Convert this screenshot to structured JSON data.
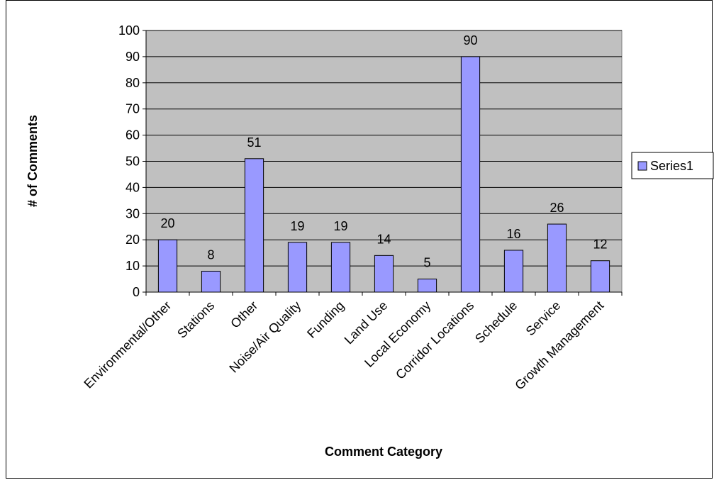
{
  "chart_data": {
    "type": "bar",
    "categories": [
      "Environmental/Other",
      "Stations",
      "Other",
      "Noise/Air Quality",
      "Funding",
      "Land Use",
      "Local Economy",
      "Corridor Locations",
      "Schedule",
      "Service",
      "Growth Management"
    ],
    "series": [
      {
        "name": "Series1",
        "values": [
          20,
          8,
          51,
          19,
          19,
          14,
          5,
          90,
          16,
          26,
          12
        ],
        "color": "#9999ff"
      }
    ],
    "xlabel": "Comment Category",
    "ylabel": "# of Comments",
    "ylim": [
      0,
      100
    ],
    "yticks": [
      "0",
      "10",
      "20",
      "30",
      "40",
      "50",
      "60",
      "70",
      "80",
      "90",
      "100"
    ],
    "grid": true,
    "plot_background": "#c0c0c0",
    "legend_position": "right",
    "data_labels": true
  }
}
